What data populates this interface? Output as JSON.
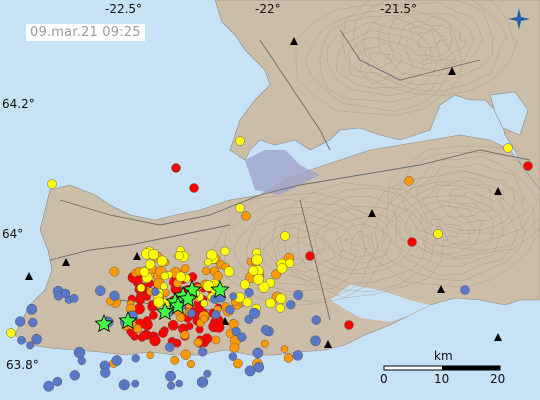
{
  "timestamp": "09.mar.21  09:25",
  "lon_labels": [
    "-22.5°",
    "-22°",
    "-21.5°"
  ],
  "lat_labels": [
    "64.2°",
    "64°",
    "63.8°"
  ],
  "scale": {
    "unit": "km",
    "ticks": [
      "0",
      "10",
      "20"
    ]
  },
  "colors": {
    "sea": "#c7e2f5",
    "land": "#cbbda7",
    "lava": "#9fa3cc",
    "road": "#6b6b6b",
    "contour": "#a89a86",
    "quake_red": "#ff0000",
    "quake_orange": "#ff9900",
    "quake_yellow": "#ffff00",
    "quake_blue": "#5a78c8",
    "star": "#44ff44"
  },
  "quake_clusters": [
    {
      "age": "red",
      "count": 80
    },
    {
      "age": "orange",
      "count": 70
    },
    {
      "age": "yellow",
      "count": 60
    },
    {
      "age": "blue",
      "count": 60
    }
  ],
  "stars_count": 9,
  "volcano_count": 14
}
